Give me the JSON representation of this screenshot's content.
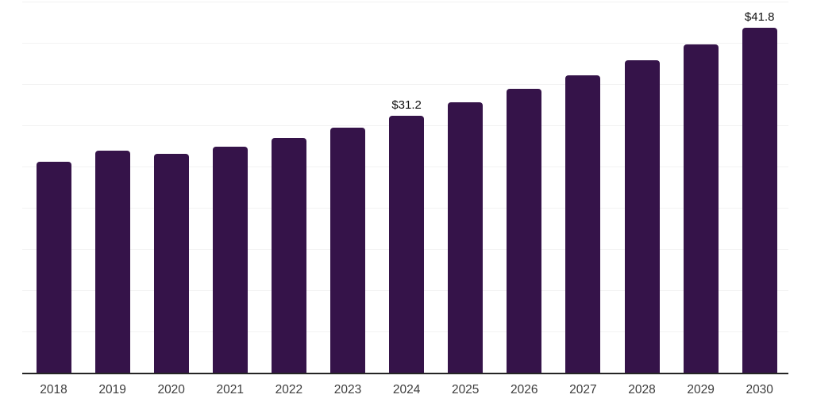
{
  "chart_data": {
    "type": "bar",
    "title": "",
    "xlabel": "",
    "ylabel": "",
    "categories": [
      "2018",
      "2019",
      "2020",
      "2021",
      "2022",
      "2023",
      "2024",
      "2025",
      "2026",
      "2027",
      "2028",
      "2029",
      "2030"
    ],
    "values": [
      25.6,
      26.9,
      26.5,
      27.4,
      28.5,
      29.7,
      31.2,
      32.8,
      34.4,
      36.1,
      37.9,
      39.8,
      41.8
    ],
    "data_labels": {
      "2024": "$31.2",
      "2030": "$41.8"
    },
    "ylim": [
      0,
      45
    ],
    "gridline_step": 5,
    "grid": true,
    "legend": false,
    "y_axis_tick_labels_visible": false,
    "colors": {
      "bar": "#351349",
      "gridline": "#f2f2f2",
      "axis_line": "#252525",
      "data_label_text": "#111111",
      "x_tick_text": "#3c3c3c",
      "background": "#ffffff"
    }
  }
}
